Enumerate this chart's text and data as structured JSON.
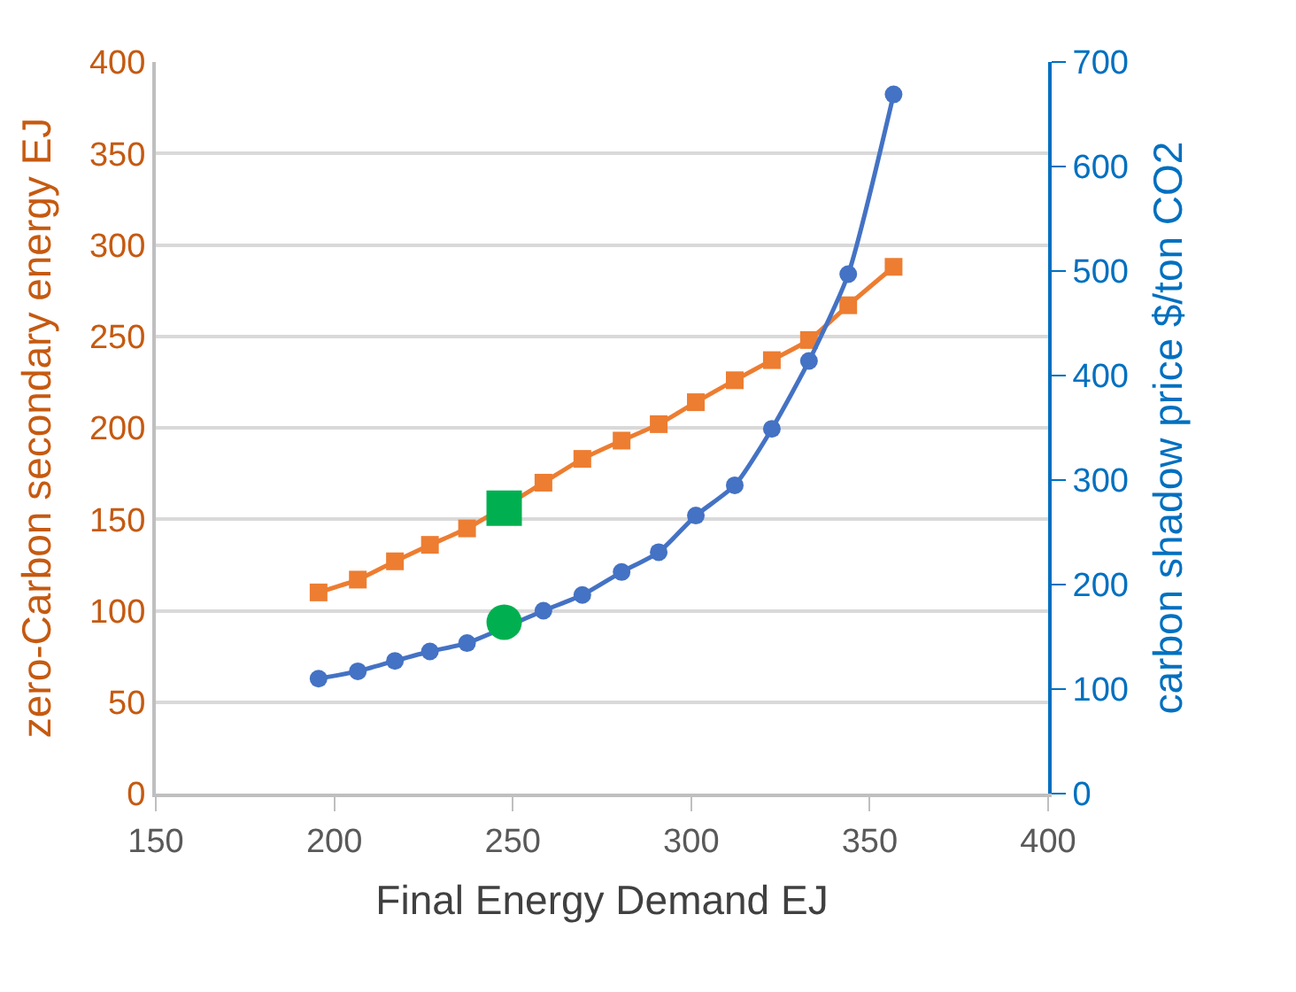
{
  "chart_data": {
    "type": "line",
    "xlabel": "Final Energy Demand EJ",
    "ylabel": "zero-Carbon secondary energy EJ",
    "y2label": "carbon shadow price $/ton CO2",
    "xlim": [
      150,
      400
    ],
    "xticks": [
      150,
      200,
      250,
      300,
      350,
      400
    ],
    "ylim": [
      0,
      400
    ],
    "yticks": [
      0,
      50,
      100,
      150,
      200,
      250,
      300,
      350,
      400
    ],
    "y2lim": [
      0,
      700
    ],
    "y2ticks": [
      0,
      100,
      200,
      300,
      400,
      500,
      600,
      700
    ],
    "grid": "y",
    "line_style": "solid",
    "series": [
      {
        "color": "#ed7d31",
        "marker": "square",
        "x": [
          195.6,
          206.6,
          217,
          226.8,
          237.2,
          258.6,
          269.5,
          280.5,
          290.9,
          301.3,
          312.2,
          322.6,
          333,
          344,
          356.7
        ],
        "values": [
          110,
          117,
          127,
          136,
          145,
          170,
          183,
          193,
          202,
          214,
          226,
          237,
          248,
          267,
          288
        ]
      },
      {
        "color": "#4472c4",
        "marker": "circle",
        "axis": "y2",
        "x": [
          195.6,
          206.6,
          217,
          226.8,
          237.2,
          258.6,
          269.5,
          280.5,
          290.9,
          301.3,
          312.2,
          322.6,
          333,
          344,
          356.7
        ],
        "values": [
          110,
          117,
          127,
          136,
          144,
          175,
          190,
          212,
          231,
          266,
          295,
          349,
          414,
          497,
          669
        ]
      },
      {
        "type": "scatter",
        "color": "#00b050",
        "marker": "square",
        "x": [
          247.6
        ],
        "values": [
          156
        ]
      },
      {
        "type": "scatter",
        "color": "#00b050",
        "marker": "circle",
        "axis": "y2",
        "x": [
          247.6
        ],
        "values": [
          164
        ]
      }
    ]
  }
}
